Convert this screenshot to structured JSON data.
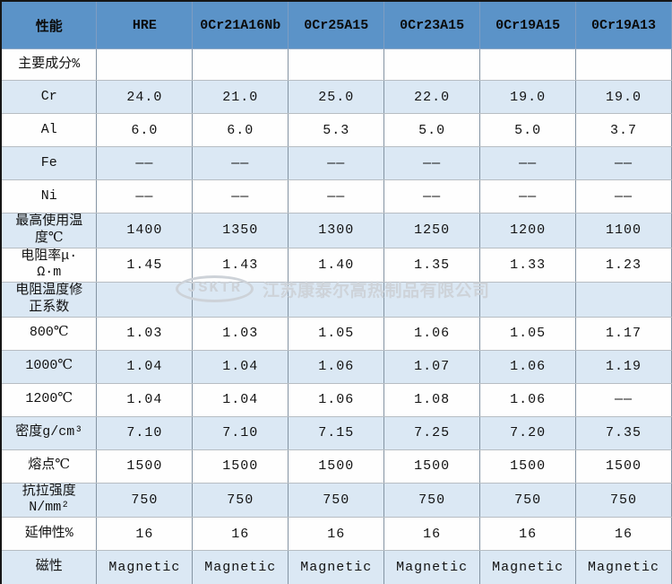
{
  "table": {
    "header": [
      "性能",
      "HRE",
      "0Cr21A16Nb",
      "0Cr25A15",
      "0Cr23A15",
      "0Cr19A15",
      "0Cr19A13"
    ],
    "rows": [
      {
        "label": "主要成分%",
        "values": [
          "",
          "",
          "",
          "",
          "",
          ""
        ]
      },
      {
        "label": "Cr",
        "values": [
          "24.0",
          "21.0",
          "25.0",
          "22.0",
          "19.0",
          "19.0"
        ]
      },
      {
        "label": "Al",
        "values": [
          "6.0",
          "6.0",
          "5.3",
          "5.0",
          "5.0",
          "3.7"
        ]
      },
      {
        "label": "Fe",
        "values": [
          "——",
          "——",
          "——",
          "——",
          "——",
          "——"
        ]
      },
      {
        "label": "Ni",
        "values": [
          "——",
          "——",
          "——",
          "——",
          "——",
          "——"
        ]
      },
      {
        "label": "最高使用温\n度℃",
        "values": [
          "1400",
          "1350",
          "1300",
          "1250",
          "1200",
          "1100"
        ]
      },
      {
        "label": "电阻率μ·\nΩ·m",
        "values": [
          "1.45",
          "1.43",
          "1.40",
          "1.35",
          "1.33",
          "1.23"
        ]
      },
      {
        "label": "电阻温度修\n正系数",
        "values": [
          "",
          "",
          "",
          "",
          "",
          ""
        ]
      },
      {
        "label": "800℃",
        "values": [
          "1.03",
          "1.03",
          "1.05",
          "1.06",
          "1.05",
          "1.17"
        ]
      },
      {
        "label": "1000℃",
        "values": [
          "1.04",
          "1.04",
          "1.06",
          "1.07",
          "1.06",
          "1.19"
        ]
      },
      {
        "label": "1200℃",
        "values": [
          "1.04",
          "1.04",
          "1.06",
          "1.08",
          "1.06",
          "——"
        ]
      },
      {
        "label": "密度g/cm³",
        "values": [
          "7.10",
          "7.10",
          "7.15",
          "7.25",
          "7.20",
          "7.35"
        ]
      },
      {
        "label": "熔点℃",
        "values": [
          "1500",
          "1500",
          "1500",
          "1500",
          "1500",
          "1500"
        ]
      },
      {
        "label": "抗拉强度\nN/mm²",
        "values": [
          "750",
          "750",
          "750",
          "750",
          "750",
          "750"
        ]
      },
      {
        "label": "延伸性%",
        "values": [
          "16",
          "16",
          "16",
          "16",
          "16",
          "16"
        ]
      },
      {
        "label": "磁性",
        "values": [
          "Magnetic",
          "Magnetic",
          "Magnetic",
          "Magnetic",
          "Magnetic",
          "Magnetic"
        ]
      }
    ]
  },
  "watermark": {
    "badge": "JSKTR",
    "company": "江苏康泰尔高热制品有限公司"
  },
  "colors": {
    "header_bg": "#5b93c8",
    "row_alt_bg": "#dbe8f4",
    "row_bg": "#fefefe",
    "outer_border": "#161616",
    "grid_vertical": "#8494a3",
    "grid_horizontal": "#b7bdc3",
    "watermark": "#cdd2d8"
  }
}
